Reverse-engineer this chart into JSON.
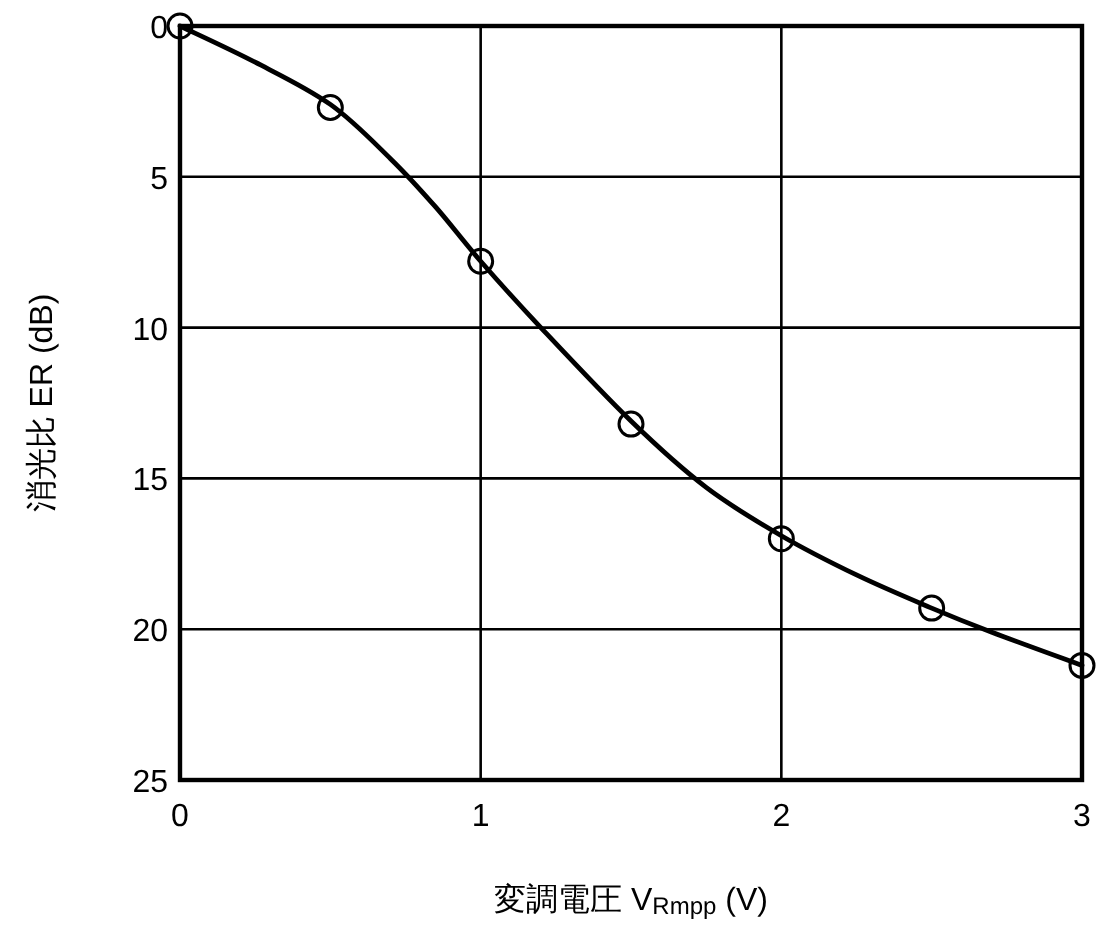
{
  "chart_data": {
    "type": "line",
    "xlabel": "変調電圧  V$_{Rmpp}$ (V)",
    "ylabel": "消光比  ER (dB)",
    "xlim": [
      0,
      3
    ],
    "xticks": [
      0,
      1,
      2,
      3
    ],
    "ylim": [
      25,
      0
    ],
    "yticks": [
      0,
      5,
      10,
      15,
      20,
      25
    ],
    "grid": true,
    "series": [
      {
        "color": "#000000",
        "marker": "none",
        "line_style": "solid",
        "x": [
          0,
          0.25,
          0.5,
          0.7,
          0.85,
          1.0,
          1.2,
          1.5,
          1.75,
          2.0,
          2.25,
          2.5,
          2.7,
          3.0
        ],
        "values": [
          0,
          1.2,
          2.6,
          4.4,
          6.0,
          7.8,
          10.0,
          13.1,
          15.3,
          16.9,
          18.2,
          19.3,
          20.1,
          21.2
        ]
      },
      {
        "type": "scatter",
        "color": "#000000",
        "marker": "circle",
        "x": [
          0,
          0.5,
          1.0,
          1.5,
          2.0,
          2.5,
          3.0
        ],
        "values": [
          0,
          2.7,
          7.8,
          13.2,
          17.0,
          19.3,
          21.2
        ]
      }
    ]
  }
}
